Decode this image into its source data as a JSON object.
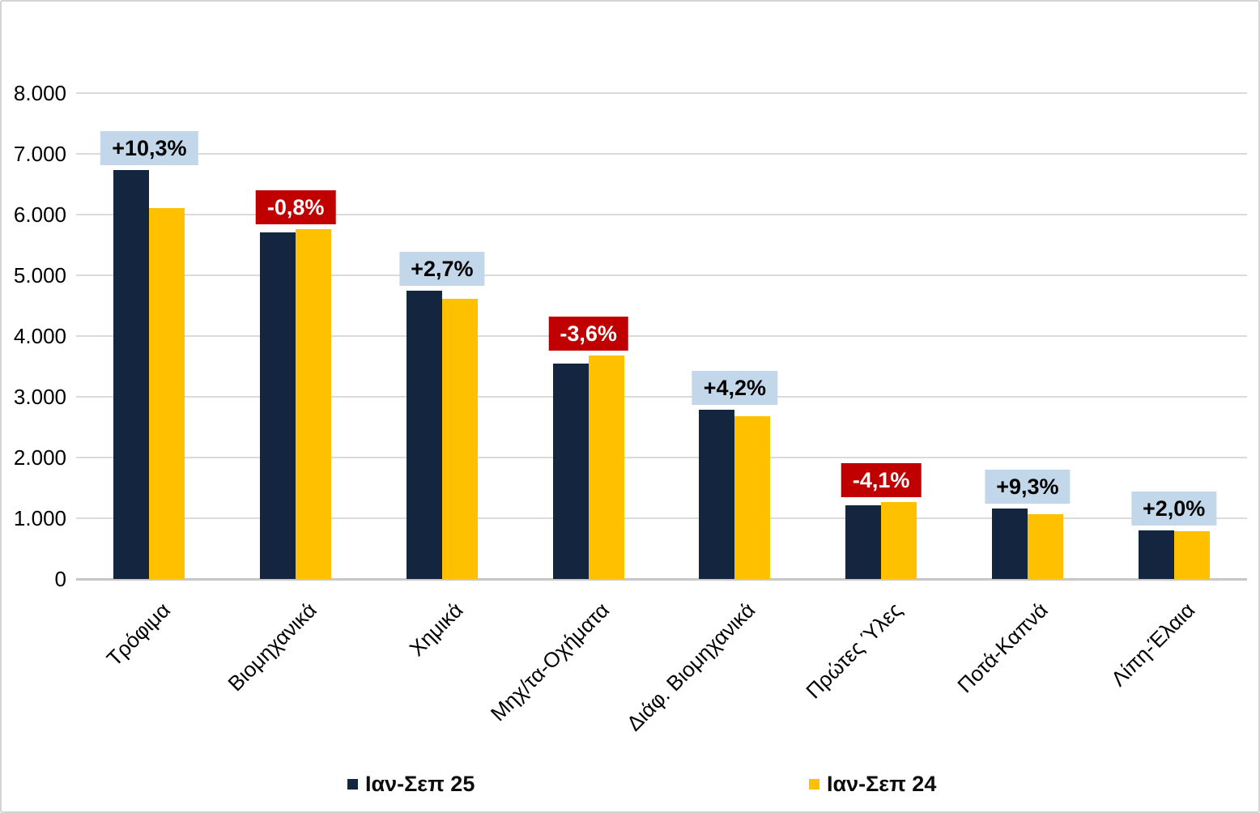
{
  "chart_data": {
    "type": "bar",
    "title": "",
    "categories": [
      "Τρόφιμα",
      "Βιομηχανικά",
      "Χημικά",
      "Μηχ/τα-Οχήματα",
      "Διάφ. Βιομηχανικά",
      "Πρώτες Ύλες",
      "Ποτά-Καπνά",
      "Λίπη-Έλαια"
    ],
    "series": [
      {
        "name": "Ιαν-Σεπ 25",
        "color": "#14263f",
        "values": [
          6730,
          5710,
          4740,
          3550,
          2790,
          1210,
          1165,
          800
        ]
      },
      {
        "name": "Ιαν-Σεπ 24",
        "color": "#ffc000",
        "values": [
          6100,
          5755,
          4615,
          3680,
          2680,
          1262,
          1065,
          785
        ]
      }
    ],
    "change_labels": [
      {
        "text": "+10,3%",
        "sentiment": "positive"
      },
      {
        "text": "-0,8%",
        "sentiment": "negative"
      },
      {
        "text": "+2,7%",
        "sentiment": "positive"
      },
      {
        "text": "-3,6%",
        "sentiment": "negative"
      },
      {
        "text": "+4,2%",
        "sentiment": "positive"
      },
      {
        "text": "-4,1%",
        "sentiment": "negative"
      },
      {
        "text": "+9,3%",
        "sentiment": "positive"
      },
      {
        "text": "+2,0%",
        "sentiment": "positive"
      }
    ],
    "y_axis": {
      "min": 0,
      "max": 8000,
      "step": 1000,
      "tick_labels": [
        "0",
        "1.000",
        "2.000",
        "3.000",
        "4.000",
        "5.000",
        "6.000",
        "7.000",
        "8.000"
      ]
    },
    "legend": {
      "position": "bottom",
      "entries": [
        "Ιαν-Σεπ 25",
        "Ιαν-Σεπ 24"
      ]
    },
    "colors": {
      "series1": "#14263f",
      "series2": "#ffc000",
      "positive_label_bg": "#c3d7eb",
      "positive_label_text": "#000000",
      "negative_label_bg": "#c00000",
      "negative_label_text": "#ffffff",
      "gridline": "#dbdbdb",
      "baseline": "#c7c7c7"
    },
    "grid": true
  }
}
